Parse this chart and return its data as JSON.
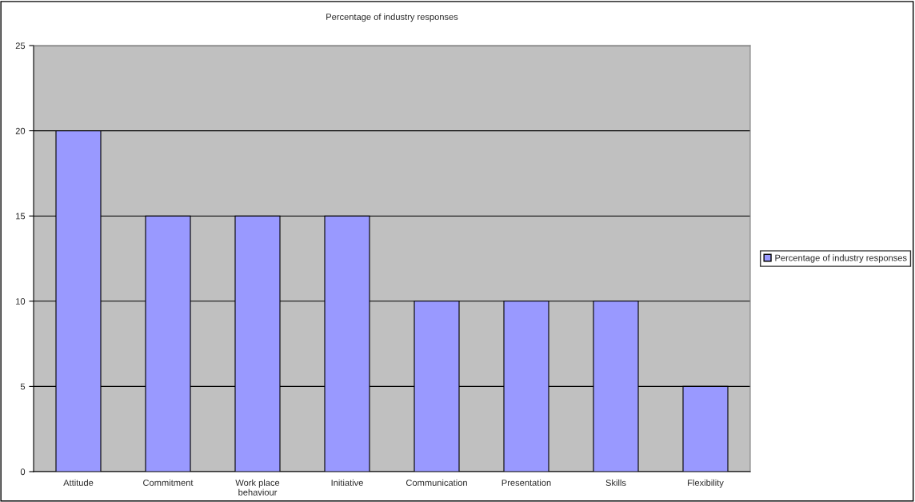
{
  "chart_data": {
    "type": "bar",
    "title": "Percentage of industry responses",
    "categories": [
      "Attitude",
      "Commitment",
      "Work place\nbehaviour",
      "Initiative",
      "Communication",
      "Presentation",
      "Skills",
      "Flexibility"
    ],
    "series": [
      {
        "name": "Percentage of industry responses",
        "color": "#9999ff",
        "values": [
          20,
          15,
          15,
          15,
          10,
          10,
          10,
          5
        ]
      }
    ],
    "ylim": [
      0,
      25
    ],
    "yticks": [
      0,
      5,
      10,
      15,
      20,
      25
    ],
    "grid": "y",
    "legend": "right"
  }
}
